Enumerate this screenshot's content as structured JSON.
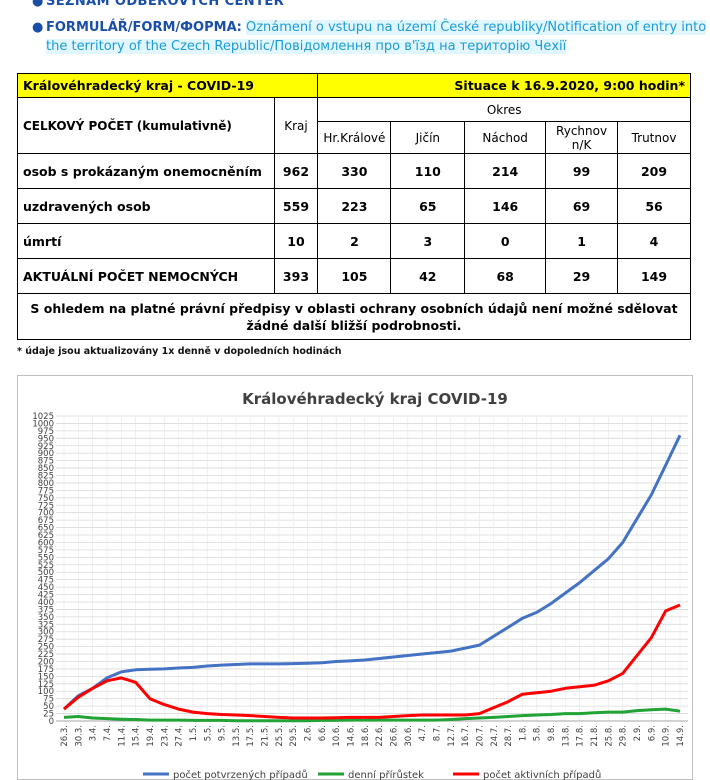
{
  "links": {
    "item1": "SEZNAM ODBĚROVÝCH CENTER",
    "item2_label": "FORMULÁŘ/FORM/ФОРМА:",
    "item2_text": "Oznámení o vstupu na území České republiky/Notification of entry into the territory of the Czech Republic/Повідомлення про в'їзд на територію Чехії"
  },
  "table": {
    "region_title": "Královéhradecký kraj - COVID-19",
    "situation": "Situace k 16.9.2020, 9:00 hodin*",
    "okres_label": "Okres",
    "total_label": "CELKOVÝ POČET (kumulativně)",
    "columns": [
      "Kraj",
      "Hr.Králové",
      "Jičín",
      "Náchod",
      "Rychnov n/K",
      "Trutnov"
    ],
    "rows": [
      {
        "label": "osob s prokázaným onemocněním",
        "values": [
          "962",
          "330",
          "110",
          "214",
          "99",
          "209"
        ]
      },
      {
        "label": "uzdravených osob",
        "values": [
          "559",
          "223",
          "65",
          "146",
          "69",
          "56"
        ]
      },
      {
        "label": "úmrtí",
        "values": [
          "10",
          "2",
          "3",
          "0",
          "1",
          "4"
        ]
      },
      {
        "label": "AKTUÁLNÍ POČET NEMOCNÝCH",
        "values": [
          "393",
          "105",
          "42",
          "68",
          "29",
          "149"
        ]
      }
    ],
    "note": "S ohledem na platné právní předpisy v oblasti ochrany osobních údajů není možné sdělovat žádné další bližší podrobnosti."
  },
  "footnote": "* údaje jsou aktualizovány 1x denně v dopoledních hodinách",
  "chart_data": {
    "type": "line",
    "title": "Královéhradecký kraj COVID-19",
    "ylim": [
      0,
      1025
    ],
    "yticks": [
      0,
      25,
      50,
      75,
      100,
      125,
      150,
      175,
      200,
      225,
      250,
      275,
      300,
      325,
      350,
      375,
      400,
      425,
      450,
      475,
      500,
      525,
      550,
      575,
      600,
      625,
      650,
      675,
      700,
      725,
      750,
      775,
      800,
      825,
      850,
      875,
      900,
      925,
      950,
      975,
      1000,
      1025
    ],
    "categories": [
      "26.3.",
      "30.3.",
      "3.4.",
      "7.4.",
      "11.4.",
      "15.4.",
      "19.4.",
      "23.4.",
      "27.4.",
      "1.5.",
      "5.5.",
      "9.5.",
      "13.5.",
      "17.5.",
      "21.5.",
      "25.5.",
      "29.5.",
      "2.6.",
      "6.6.",
      "10.6.",
      "14.6.",
      "18.6.",
      "22.6.",
      "26.6.",
      "30.6.",
      "4.7.",
      "8.7.",
      "12.7.",
      "16.7.",
      "20.7.",
      "24.7.",
      "28.7.",
      "1.8.",
      "5.8.",
      "9.8.",
      "13.8.",
      "17.8.",
      "21.8.",
      "25.8.",
      "29.8.",
      "2.9.",
      "6.9.",
      "10.9.",
      "14.9."
    ],
    "grid": true,
    "legend_position": "bottom",
    "series": [
      {
        "name": "počet potvrzených případů",
        "color": "#4472c4",
        "values": [
          40,
          85,
          110,
          145,
          165,
          172,
          174,
          175,
          178,
          180,
          185,
          188,
          190,
          192,
          192,
          192,
          193,
          194,
          196,
          200,
          202,
          205,
          210,
          215,
          220,
          225,
          230,
          235,
          245,
          255,
          285,
          315,
          345,
          365,
          395,
          430,
          465,
          505,
          545,
          600,
          680,
          760,
          860,
          960
        ]
      },
      {
        "name": "denní přírůstek",
        "color": "#21a336",
        "values": [
          12,
          15,
          10,
          8,
          6,
          5,
          3,
          3,
          3,
          2,
          2,
          2,
          1,
          1,
          1,
          1,
          1,
          1,
          2,
          2,
          3,
          3,
          3,
          3,
          3,
          3,
          3,
          5,
          8,
          10,
          12,
          15,
          18,
          20,
          22,
          25,
          25,
          28,
          30,
          30,
          35,
          38,
          40,
          33
        ]
      },
      {
        "name": "počet aktivních případů",
        "color": "#ff0000",
        "values": [
          40,
          80,
          110,
          135,
          145,
          130,
          75,
          55,
          40,
          30,
          25,
          22,
          20,
          18,
          15,
          12,
          10,
          10,
          10,
          11,
          12,
          12,
          12,
          15,
          18,
          20,
          20,
          20,
          20,
          25,
          45,
          65,
          90,
          95,
          100,
          110,
          115,
          120,
          135,
          160,
          220,
          280,
          370,
          390
        ]
      }
    ]
  }
}
